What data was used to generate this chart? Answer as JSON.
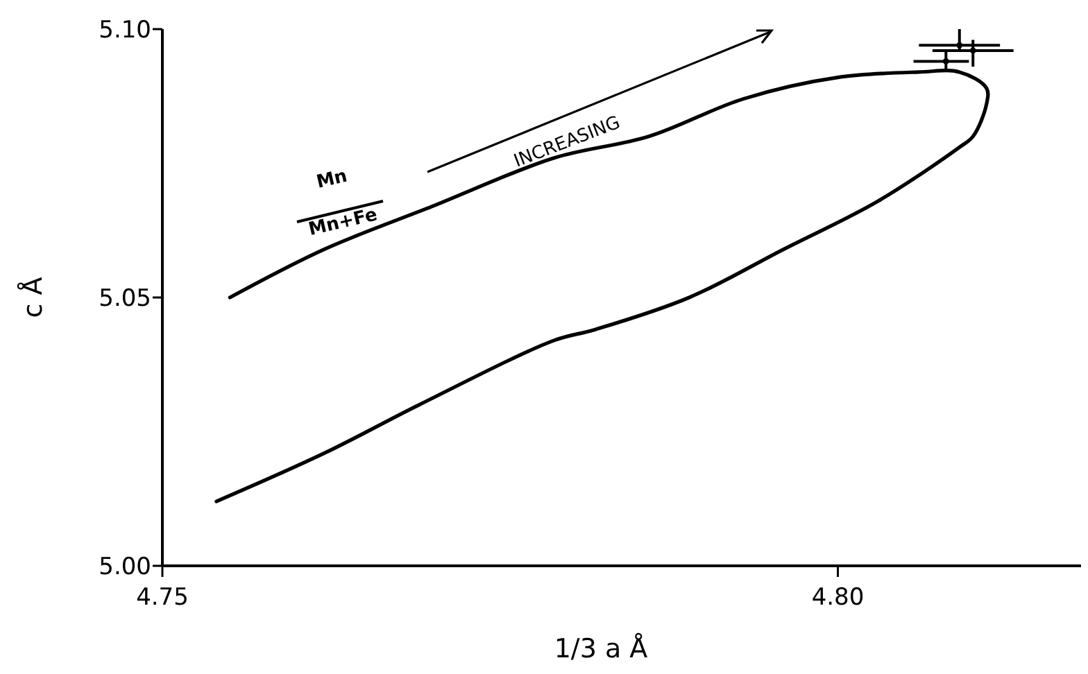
{
  "chart_data": {
    "type": "line",
    "xlabel": "1/3 a Å",
    "ylabel": "c Å",
    "xlim": [
      4.75,
      4.818
    ],
    "ylim": [
      5.0,
      5.1
    ],
    "xticks": [
      {
        "value": 4.75,
        "label": "4.75"
      },
      {
        "value": 4.8,
        "label": "4.80"
      }
    ],
    "yticks": [
      {
        "value": 5.0,
        "label": "5.00"
      },
      {
        "value": 5.05,
        "label": "5.05"
      },
      {
        "value": 5.1,
        "label": "5.10"
      }
    ],
    "grid": false,
    "annotations": [
      "Mn",
      "Mn+Fe",
      "INCREASING"
    ],
    "series": [
      {
        "color": "#000000",
        "marker": "none",
        "line_style": "solid",
        "x": [
          4.755,
          4.762,
          4.77,
          4.779,
          4.786,
          4.793,
          4.8,
          4.806,
          4.809,
          4.811,
          4.811,
          4.81,
          4.809,
          4.803,
          4.796,
          4.789,
          4.782,
          4.779,
          4.769,
          4.762,
          4.754
        ],
        "values": [
          5.05,
          5.059,
          5.067,
          5.076,
          5.08,
          5.087,
          5.091,
          5.092,
          5.092,
          5.089,
          5.086,
          5.08,
          5.078,
          5.068,
          5.059,
          5.05,
          5.044,
          5.042,
          5.03,
          5.021,
          5.012
        ]
      },
      {
        "type": "scatter",
        "color": "#000000",
        "x": [
          4.809,
          4.81,
          4.808
        ],
        "values": [
          5.097,
          5.096,
          5.094
        ],
        "errors": [
          [
            5.096,
            5.1
          ],
          [
            5.093,
            5.098
          ],
          [
            5.0925,
            5.096
          ]
        ],
        "xerrors": [
          [
            4.806,
            4.812
          ],
          [
            4.807,
            4.813
          ],
          [
            4.8056,
            4.8097
          ]
        ]
      }
    ]
  }
}
